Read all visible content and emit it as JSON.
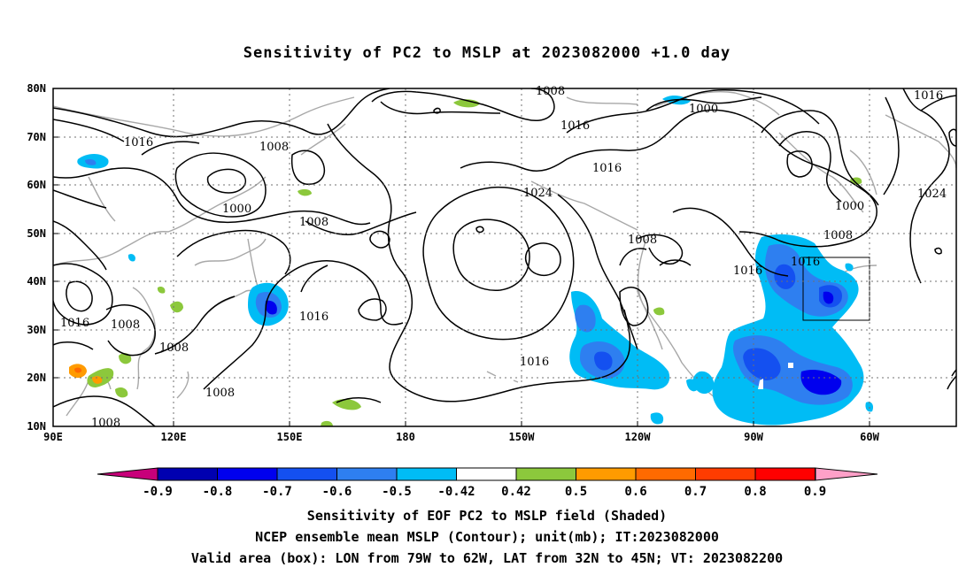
{
  "title": "Sensitivity of PC2 to MSLP at 2023082000 +1.0 day",
  "axes": {
    "lat_labels": [
      "80N",
      "70N",
      "60N",
      "50N",
      "40N",
      "30N",
      "20N",
      "10N"
    ],
    "lon_labels": [
      "90E",
      "120E",
      "150E",
      "180",
      "150W",
      "120W",
      "90W",
      "60W"
    ]
  },
  "contour_labels": [
    {
      "text": "1008"
    },
    {
      "text": "1016"
    },
    {
      "text": "1008"
    },
    {
      "text": "1016"
    },
    {
      "text": "1016"
    },
    {
      "text": "1000"
    },
    {
      "text": "1008"
    },
    {
      "text": "1024"
    },
    {
      "text": "1016"
    },
    {
      "text": "1008"
    },
    {
      "text": "1000"
    },
    {
      "text": "1016"
    },
    {
      "text": "1024"
    },
    {
      "text": "1000"
    },
    {
      "text": "1008"
    },
    {
      "text": "1016"
    },
    {
      "text": "1016"
    },
    {
      "text": "1016"
    },
    {
      "text": "1008"
    },
    {
      "text": "1008"
    },
    {
      "text": "1008"
    },
    {
      "text": "1016"
    },
    {
      "text": "1008"
    }
  ],
  "colorbar": {
    "labels": [
      "-0.9",
      "-0.8",
      "-0.7",
      "-0.6",
      "-0.5",
      "-0.42",
      "0.42",
      "0.5",
      "0.6",
      "0.7",
      "0.8",
      "0.9"
    ],
    "colors": [
      "#0000b0",
      "#0000ee",
      "#1450f0",
      "#2e7ff0",
      "#00bcf5",
      "#ffffff",
      "#8cc83c",
      "#ff9b00",
      "#ff6a00",
      "#ff3c00",
      "#ff0000"
    ],
    "low_color": "#c8007a",
    "high_color": "#ffa0c8"
  },
  "box": {
    "lon_from": "79W",
    "lon_to": "62W",
    "lat_from": "32N",
    "lat_to": "45N"
  },
  "captions": [
    "Sensitivity of EOF PC2 to MSLP field (Shaded)",
    "NCEP ensemble mean MSLP (Contour); unit(mb); IT:2023082000",
    "Valid area (box): LON from 79W to 62W, LAT from 32N to 45N; VT: 2023082200"
  ]
}
